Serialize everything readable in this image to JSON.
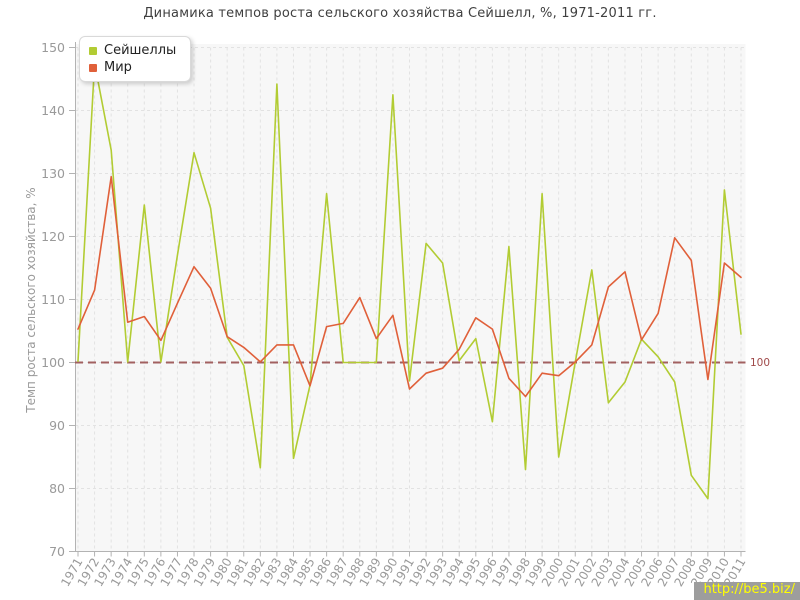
{
  "title": "Динамика темпов роста сельского хозяйства Сейшелл, %, 1971-2011 гг.",
  "legend": {
    "items": [
      {
        "label": "Сейшеллы",
        "color": "#b2cc33"
      },
      {
        "label": "Мир",
        "color": "#e0603a"
      }
    ]
  },
  "watermark": {
    "text": "http://be5.biz/",
    "bg": "#9d9d9d",
    "color": "#ffff00"
  },
  "colors": {
    "plot_background": "#f7f7f7",
    "grid": "#e2e2e2",
    "axis": "#b3b3b3",
    "tick_label": "#9a9a9a",
    "reference_line": "#a26060",
    "reference_label": "#a04a4a",
    "title_text": "#3f3f3f"
  },
  "chart_data": {
    "type": "line",
    "title": "Динамика темпов роста сельского хозяйства Сейшелл, %, 1971-2011 гг.",
    "xlabel": "",
    "ylabel": "Темп роста сельского хозяйства, %",
    "ylim": [
      70,
      150
    ],
    "ytick_step": 10,
    "grid": true,
    "legend_position": "top-left",
    "reference_line": {
      "value": 100,
      "label": "100"
    },
    "categories": [
      "1971",
      "1972",
      "1973",
      "1974",
      "1975",
      "1976",
      "1977",
      "1978",
      "1979",
      "1980",
      "1981",
      "1982",
      "1983",
      "1984",
      "1985",
      "1986",
      "1987",
      "1988",
      "1989",
      "1990",
      "1991",
      "1992",
      "1993",
      "1994",
      "1995",
      "1996",
      "1997",
      "1998",
      "1999",
      "2000",
      "2001",
      "2002",
      "2003",
      "2004",
      "2005",
      "2006",
      "2007",
      "2008",
      "2009",
      "2010",
      "2011"
    ],
    "series": [
      {
        "name": "Сейшеллы",
        "color": "#b2cc33",
        "values": [
          100.2,
          147.5,
          133.7,
          100.1,
          125.0,
          100.1,
          117.0,
          133.3,
          124.5,
          104.0,
          99.5,
          83.3,
          144.2,
          84.8,
          96.4,
          126.8,
          100.0,
          100.0,
          100.0,
          142.5,
          97.1,
          118.9,
          115.8,
          100.3,
          103.8,
          90.6,
          118.4,
          83.0,
          126.8,
          85.0,
          100.1,
          114.7,
          93.6,
          96.9,
          103.7,
          100.9,
          96.9,
          82.1,
          78.4,
          127.4,
          104.5
        ]
      },
      {
        "name": "Мир",
        "color": "#e0603a",
        "values": [
          105.3,
          111.5,
          129.5,
          106.4,
          107.3,
          103.5,
          109.4,
          115.2,
          111.8,
          104.1,
          102.4,
          100.1,
          102.8,
          102.8,
          96.3,
          105.7,
          106.2,
          110.3,
          103.8,
          107.5,
          95.8,
          98.3,
          99.1,
          102.1,
          107.1,
          105.3,
          97.5,
          94.6,
          98.3,
          97.9,
          100.1,
          102.8,
          112.0,
          114.4,
          103.6,
          107.8,
          119.8,
          116.2,
          97.3,
          115.8,
          113.5
        ]
      }
    ]
  }
}
